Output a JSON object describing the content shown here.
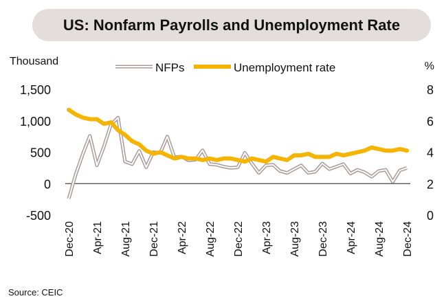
{
  "chart_data": {
    "type": "line",
    "title": "US: Nonfarm Payrolls and Unemployment Rate",
    "ylabel_left": "Thousand",
    "ylabel_right": "%",
    "source": "Source: CEIC",
    "ylim_left": [
      -500,
      1500
    ],
    "ylim_right": [
      0,
      8
    ],
    "yticks_left": [
      "-500",
      "0",
      "500",
      "1,000",
      "1,500"
    ],
    "yticks_right": [
      "0",
      "2",
      "4",
      "6",
      "8"
    ],
    "xtick_labels": [
      "Dec-20",
      "Apr-21",
      "Aug-21",
      "Dec-21",
      "Apr-22",
      "Aug-22",
      "Dec-22",
      "Apr-23",
      "Aug-23",
      "Dec-23",
      "Apr-24",
      "Aug-24",
      "Dec-24"
    ],
    "legend": "top",
    "series": [
      {
        "name": "NFPs",
        "axis": "left",
        "color": "#a8999a",
        "values": [
          -240,
          150,
          470,
          760,
          290,
          590,
          940,
          1050,
          350,
          310,
          520,
          260,
          500,
          490,
          750,
          420,
          430,
          370,
          380,
          530,
          310,
          300,
          270,
          250,
          260,
          490,
          320,
          170,
          290,
          300,
          200,
          170,
          230,
          290,
          170,
          190,
          320,
          230,
          270,
          310,
          160,
          220,
          180,
          110,
          200,
          220,
          30,
          210,
          250
        ]
      },
      {
        "name": "Unemployment rate",
        "axis": "right",
        "color": "#f4b400",
        "values": [
          6.7,
          6.4,
          6.2,
          6.1,
          6.1,
          5.8,
          5.9,
          5.4,
          5.1,
          4.7,
          4.5,
          4.1,
          3.9,
          4.0,
          3.8,
          3.6,
          3.7,
          3.6,
          3.6,
          3.5,
          3.6,
          3.5,
          3.6,
          3.6,
          3.5,
          3.4,
          3.6,
          3.5,
          3.4,
          3.7,
          3.6,
          3.5,
          3.8,
          3.8,
          3.9,
          3.7,
          3.7,
          3.7,
          3.9,
          3.8,
          3.9,
          4.0,
          4.1,
          4.3,
          4.2,
          4.1,
          4.1,
          4.2,
          4.1
        ]
      }
    ]
  }
}
